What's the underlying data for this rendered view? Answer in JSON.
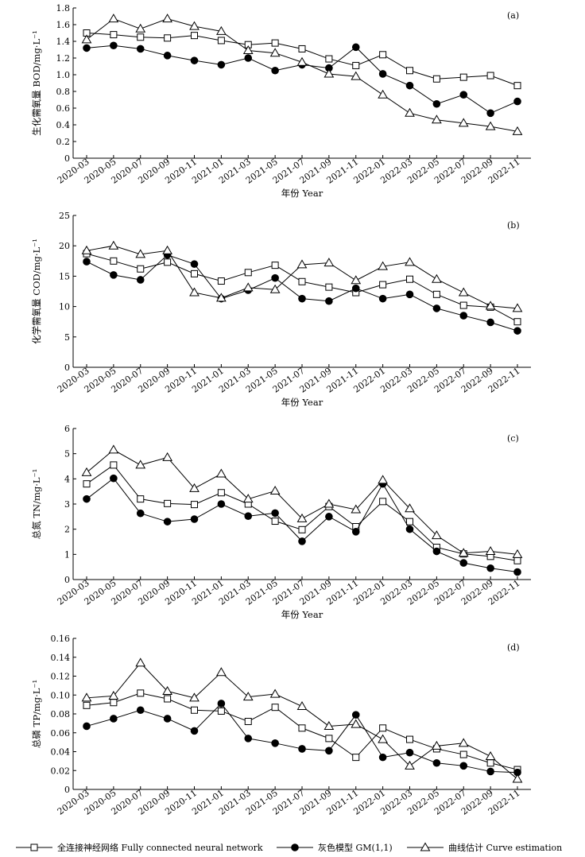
{
  "chart_data": [
    {
      "type": "line",
      "panel": "(a)",
      "xlabel": "年份 Year",
      "ylabel": "生化需氧量 BOD/mg·L⁻¹",
      "ylim": [
        0,
        1.8
      ],
      "yticks": [
        "0",
        "0.2",
        "0.4",
        "0.6",
        "0.8",
        "1.0",
        "1.2",
        "1.4",
        "1.6",
        "1.8"
      ],
      "categories": [
        "2020-03",
        "2020-05",
        "2020-07",
        "2020-09",
        "2020-11",
        "2021-01",
        "2021-03",
        "2021-05",
        "2021-07",
        "2021-09",
        "2021-11",
        "2022-01",
        "2022-03",
        "2022-05",
        "2022-07",
        "2022-09",
        "2022-11"
      ],
      "series": [
        {
          "name": "全连接神经网络 Fully connected neural network",
          "marker": "square",
          "values": [
            1.5,
            1.48,
            1.45,
            1.44,
            1.47,
            1.41,
            1.36,
            1.38,
            1.31,
            1.19,
            1.11,
            1.24,
            1.05,
            0.95,
            0.97,
            0.99,
            0.87
          ]
        },
        {
          "name": "灰色模型 GM(1,1)",
          "marker": "circle",
          "values": [
            1.32,
            1.35,
            1.31,
            1.23,
            1.17,
            1.12,
            1.2,
            1.05,
            1.12,
            1.08,
            1.33,
            1.01,
            0.87,
            0.65,
            0.76,
            0.54,
            0.68
          ]
        },
        {
          "name": "曲线估计 Curve estimation",
          "marker": "triangle",
          "values": [
            1.42,
            1.67,
            1.55,
            1.67,
            1.58,
            1.52,
            1.29,
            1.26,
            1.15,
            1.01,
            0.98,
            0.76,
            0.54,
            0.46,
            0.42,
            0.38,
            0.32
          ]
        }
      ],
      "grid": false
    },
    {
      "type": "line",
      "panel": "(b)",
      "xlabel": "年份 Year",
      "ylabel": "化学需氧量 COD/mg·L⁻¹",
      "ylim": [
        0,
        25
      ],
      "yticks": [
        "0",
        "5",
        "10",
        "15",
        "20",
        "25"
      ],
      "categories": [
        "2020-03",
        "2020-05",
        "2020-07",
        "2020-09",
        "2020-11",
        "2021-01",
        "2021-03",
        "2021-05",
        "2021-07",
        "2021-09",
        "2021-11",
        "2022-01",
        "2022-03",
        "2022-05",
        "2022-07",
        "2022-09",
        "2022-11"
      ],
      "series": [
        {
          "name": "全连接神经网络 Fully connected neural network",
          "marker": "square",
          "values": [
            18.7,
            17.5,
            16.2,
            17.3,
            15.4,
            14.2,
            15.6,
            16.8,
            14.1,
            13.2,
            12.3,
            13.6,
            14.5,
            12.0,
            10.2,
            9.9,
            7.5
          ]
        },
        {
          "name": "灰色模型 GM(1,1)",
          "marker": "circle",
          "values": [
            17.4,
            15.2,
            14.4,
            18.5,
            17.0,
            11.3,
            12.7,
            14.7,
            11.3,
            10.9,
            13.0,
            11.3,
            12.0,
            9.7,
            8.5,
            7.4,
            6.0
          ]
        },
        {
          "name": "曲线估计 Curve estimation",
          "marker": "triangle",
          "values": [
            19.2,
            20.0,
            18.6,
            19.2,
            12.3,
            11.4,
            13.1,
            12.8,
            16.9,
            17.2,
            14.3,
            16.6,
            17.3,
            14.5,
            12.3,
            10.1,
            9.7
          ]
        }
      ],
      "grid": false
    },
    {
      "type": "line",
      "panel": "(c)",
      "xlabel": "年份 Year",
      "ylabel": "总氮 TN/mg·L⁻¹",
      "ylim": [
        0,
        6
      ],
      "yticks": [
        "0",
        "1",
        "2",
        "3",
        "4",
        "5",
        "6"
      ],
      "categories": [
        "2020-03",
        "2020-05",
        "2020-07",
        "2020-09",
        "2020-11",
        "2021-01",
        "2021-03",
        "2021-05",
        "2021-07",
        "2021-09",
        "2021-11",
        "2022-01",
        "2022-03",
        "2022-05",
        "2022-07",
        "2022-09",
        "2022-11"
      ],
      "series": [
        {
          "name": "全连接神经网络 Fully connected neural network",
          "marker": "square",
          "values": [
            3.8,
            4.55,
            3.2,
            3.02,
            2.98,
            3.45,
            3.0,
            2.32,
            1.98,
            2.9,
            2.1,
            3.1,
            2.3,
            1.28,
            1.02,
            0.92,
            0.75
          ]
        },
        {
          "name": "灰色模型 GM(1,1)",
          "marker": "circle",
          "values": [
            3.2,
            4.02,
            2.63,
            2.3,
            2.4,
            3.0,
            2.52,
            2.64,
            1.52,
            2.5,
            1.9,
            3.8,
            2.0,
            1.12,
            0.66,
            0.45,
            0.3
          ]
        },
        {
          "name": "曲线估计 Curve estimation",
          "marker": "triangle",
          "values": [
            4.25,
            5.15,
            4.55,
            4.85,
            3.62,
            4.2,
            3.2,
            3.52,
            2.42,
            3.0,
            2.78,
            3.95,
            2.82,
            1.75,
            1.05,
            1.12,
            1.0
          ]
        }
      ],
      "grid": false
    },
    {
      "type": "line",
      "panel": "(d)",
      "xlabel": "",
      "ylabel": "总磷 TP/mg·L⁻¹",
      "ylim": [
        0,
        0.16
      ],
      "yticks": [
        "0",
        "0.02",
        "0.04",
        "0.06",
        "0.08",
        "0.10",
        "0.12",
        "0.14",
        "0.16"
      ],
      "categories": [
        "2020-03",
        "2020-05",
        "2020-07",
        "2020-09",
        "2020-11",
        "2021-01",
        "2021-03",
        "2021-05",
        "2021-07",
        "2021-09",
        "2021-11",
        "2022-01",
        "2022-03",
        "2022-05",
        "2022-07",
        "2022-09",
        "2022-11"
      ],
      "series": [
        {
          "name": "全连接神经网络 Fully connected neural network",
          "marker": "square",
          "values": [
            0.089,
            0.092,
            0.102,
            0.096,
            0.084,
            0.083,
            0.072,
            0.087,
            0.065,
            0.054,
            0.034,
            0.065,
            0.053,
            0.043,
            0.037,
            0.028,
            0.021
          ]
        },
        {
          "name": "灰色模型 GM(1,1)",
          "marker": "circle",
          "values": [
            0.067,
            0.075,
            0.084,
            0.075,
            0.062,
            0.091,
            0.054,
            0.049,
            0.043,
            0.041,
            0.079,
            0.034,
            0.039,
            0.028,
            0.025,
            0.019,
            0.018
          ]
        },
        {
          "name": "曲线估计 Curve estimation",
          "marker": "triangle",
          "values": [
            0.097,
            0.099,
            0.134,
            0.104,
            0.097,
            0.124,
            0.098,
            0.101,
            0.088,
            0.067,
            0.069,
            0.053,
            0.025,
            0.046,
            0.049,
            0.035,
            0.011
          ]
        }
      ],
      "grid": false
    }
  ],
  "legend": [
    {
      "label": "全连接神经网络 Fully connected neural network",
      "marker": "square"
    },
    {
      "label": "灰色模型 GM(1,1)",
      "marker": "circle"
    },
    {
      "label": "曲线估计 Curve estimation",
      "marker": "triangle"
    }
  ],
  "colors": {
    "line": "#000000",
    "open_marker_fill": "#ffffff",
    "filled_marker": "#000000"
  }
}
